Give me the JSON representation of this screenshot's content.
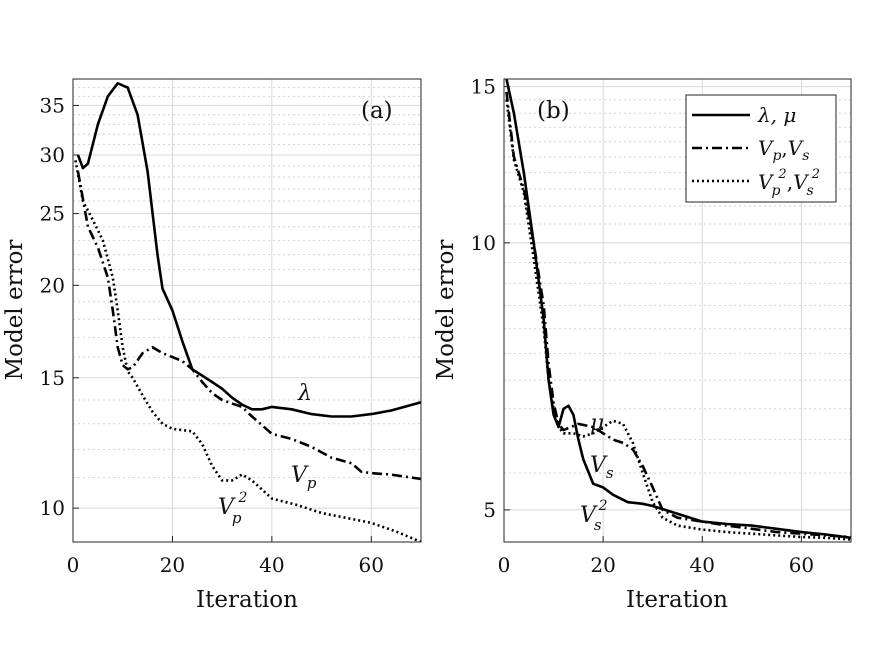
{
  "chart_data": [
    {
      "type": "line",
      "panel": "(a)",
      "xlabel": "Iteration",
      "ylabel": "Model error",
      "xlim": [
        0,
        70
      ],
      "ylim": [
        9,
        38
      ],
      "yscale": "log",
      "xticks": [
        0,
        20,
        40,
        60
      ],
      "yticks": [
        10,
        15,
        20,
        25,
        30,
        35
      ],
      "grid": true,
      "series": [
        {
          "name": "λ",
          "style": "solid",
          "x": [
            1,
            2,
            3,
            5,
            7,
            9,
            11,
            13,
            15,
            17,
            18,
            20,
            22,
            24,
            26,
            28,
            30,
            32,
            34,
            36,
            38,
            40,
            44,
            48,
            52,
            56,
            60,
            64,
            70
          ],
          "y": [
            30,
            28.8,
            29.2,
            33,
            36,
            37.5,
            37,
            34,
            28.5,
            22,
            19.8,
            18.5,
            16.8,
            15.4,
            15.1,
            14.8,
            14.5,
            14.1,
            13.8,
            13.6,
            13.6,
            13.7,
            13.6,
            13.4,
            13.3,
            13.3,
            13.4,
            13.55,
            13.9
          ]
        },
        {
          "name": "Vp",
          "style": "dashdot",
          "x": [
            1,
            3,
            5,
            7,
            8,
            9,
            10,
            11,
            12,
            14,
            16,
            18,
            20,
            22,
            24,
            26,
            28,
            30,
            34,
            36,
            40,
            44,
            48,
            52,
            56,
            58,
            60,
            64,
            70
          ],
          "y": [
            28.5,
            24,
            22.5,
            20.5,
            18.5,
            16.5,
            15.6,
            15.4,
            15.5,
            16.2,
            16.5,
            16.2,
            16,
            15.8,
            15.4,
            14.8,
            14.3,
            14,
            13.7,
            13.3,
            12.6,
            12.4,
            12.1,
            11.7,
            11.5,
            11.2,
            11.15,
            11.1,
            10.95
          ]
        },
        {
          "name": "Vp²",
          "style": "dotted",
          "x": [
            0.5,
            2,
            4,
            6,
            8,
            9,
            10,
            11,
            12,
            14,
            16,
            18,
            20,
            24,
            26,
            28,
            30,
            32,
            34,
            36,
            40,
            45,
            50,
            55,
            60,
            65,
            70
          ],
          "y": [
            29.5,
            26,
            24.5,
            23,
            20.5,
            18.5,
            16.5,
            15.3,
            15,
            14.2,
            13.5,
            13,
            12.8,
            12.7,
            12.2,
            11.4,
            10.9,
            10.9,
            11.1,
            10.9,
            10.3,
            10.1,
            9.85,
            9.7,
            9.55,
            9.3,
            9.0
          ]
        }
      ],
      "annotations": [
        {
          "text": "λ",
          "near": "series λ at x≈47"
        },
        {
          "text": "Vp",
          "near": "series Vp at x≈46"
        },
        {
          "text": "Vp²",
          "near": "series Vp² at x≈33"
        }
      ]
    },
    {
      "type": "line",
      "panel": "(b)",
      "xlabel": "Iteration",
      "ylabel": "Model error",
      "xlim": [
        0,
        70
      ],
      "ylim": [
        4.6,
        15.3
      ],
      "yscale": "log",
      "xticks": [
        0,
        20,
        40,
        60
      ],
      "yticks": [
        5,
        10,
        15
      ],
      "grid": true,
      "legend": {
        "placement": "top-right",
        "entries": [
          "λ, μ",
          "Vp,Vs",
          "Vp²,Vs²"
        ]
      },
      "series": [
        {
          "name": "λ, μ",
          "style": "solid",
          "x": [
            0.5,
            2,
            4,
            6,
            8,
            9,
            10,
            11,
            12,
            13,
            14,
            15,
            16,
            18,
            20,
            22,
            25,
            28,
            30,
            35,
            40,
            45,
            50,
            55,
            60,
            65,
            70
          ],
          "y": [
            15.3,
            14,
            12,
            10,
            8.2,
            7,
            6.4,
            6.2,
            6.5,
            6.55,
            6.4,
            6.0,
            5.7,
            5.35,
            5.3,
            5.2,
            5.1,
            5.08,
            5.05,
            4.95,
            4.85,
            4.82,
            4.8,
            4.76,
            4.72,
            4.69,
            4.65
          ]
        },
        {
          "name": "Vp,Vs",
          "style": "dashdot",
          "x": [
            0.5,
            2,
            4,
            6,
            8,
            9,
            10,
            11,
            12,
            15,
            18,
            20,
            22,
            24,
            26,
            28,
            30,
            32,
            35,
            40,
            45,
            50,
            55,
            60,
            65,
            70
          ],
          "y": [
            14.8,
            12.5,
            11.5,
            10,
            8.5,
            7.3,
            6.6,
            6.25,
            6.15,
            6.25,
            6.2,
            6.1,
            6.0,
            5.95,
            5.85,
            5.6,
            5.3,
            5.0,
            4.9,
            4.85,
            4.8,
            4.76,
            4.72,
            4.7,
            4.68,
            4.66
          ]
        },
        {
          "name": "Vp²,Vs²",
          "style": "dotted",
          "x": [
            0.5,
            2,
            4,
            6,
            8,
            9,
            10,
            11,
            12,
            14,
            16,
            18,
            20,
            22,
            24,
            26,
            28,
            30,
            32,
            35,
            40,
            45,
            50,
            55,
            60,
            65,
            70
          ],
          "y": [
            14.5,
            12.4,
            11.4,
            9.6,
            8.0,
            7.0,
            6.5,
            6.2,
            6.1,
            6.1,
            6.05,
            6.1,
            6.2,
            6.3,
            6.25,
            5.95,
            5.5,
            5.1,
            4.9,
            4.8,
            4.75,
            4.72,
            4.7,
            4.68,
            4.66,
            4.65,
            4.63
          ]
        }
      ],
      "annotations": [
        {
          "text": "μ",
          "near": "series λ, μ at x≈18"
        },
        {
          "text": "Vs",
          "near": "series Vs at x≈20"
        },
        {
          "text": "Vs²",
          "near": "series Vs² at x≈18"
        }
      ]
    }
  ],
  "labels": {
    "panel_a": "(a)",
    "panel_b": "(b)",
    "xlabel": "Iteration",
    "ylabel": "Model error",
    "annot_a_lambda": "λ",
    "annot_a_vp": "V",
    "annot_a_vp_sub": "p",
    "annot_a_vp2": "V",
    "annot_a_vp2_sub": "p",
    "annot_a_vp2_sup": "2",
    "annot_b_mu": "μ",
    "annot_b_vs": "V",
    "annot_b_vs_sub": "s",
    "annot_b_vs2": "V",
    "annot_b_vs2_sub": "s",
    "annot_b_vs2_sup": "2",
    "legend_1": "λ, μ",
    "legend_2a": "V",
    "legend_2a_sub": "p",
    "legend_2sep": ",",
    "legend_2b": "V",
    "legend_2b_sub": "s",
    "legend_3a": "V",
    "legend_3a_sub": "p",
    "legend_3a_sup": "2",
    "legend_3sep": ",",
    "legend_3b": "V",
    "legend_3b_sub": "s",
    "legend_3b_sup": "2"
  }
}
